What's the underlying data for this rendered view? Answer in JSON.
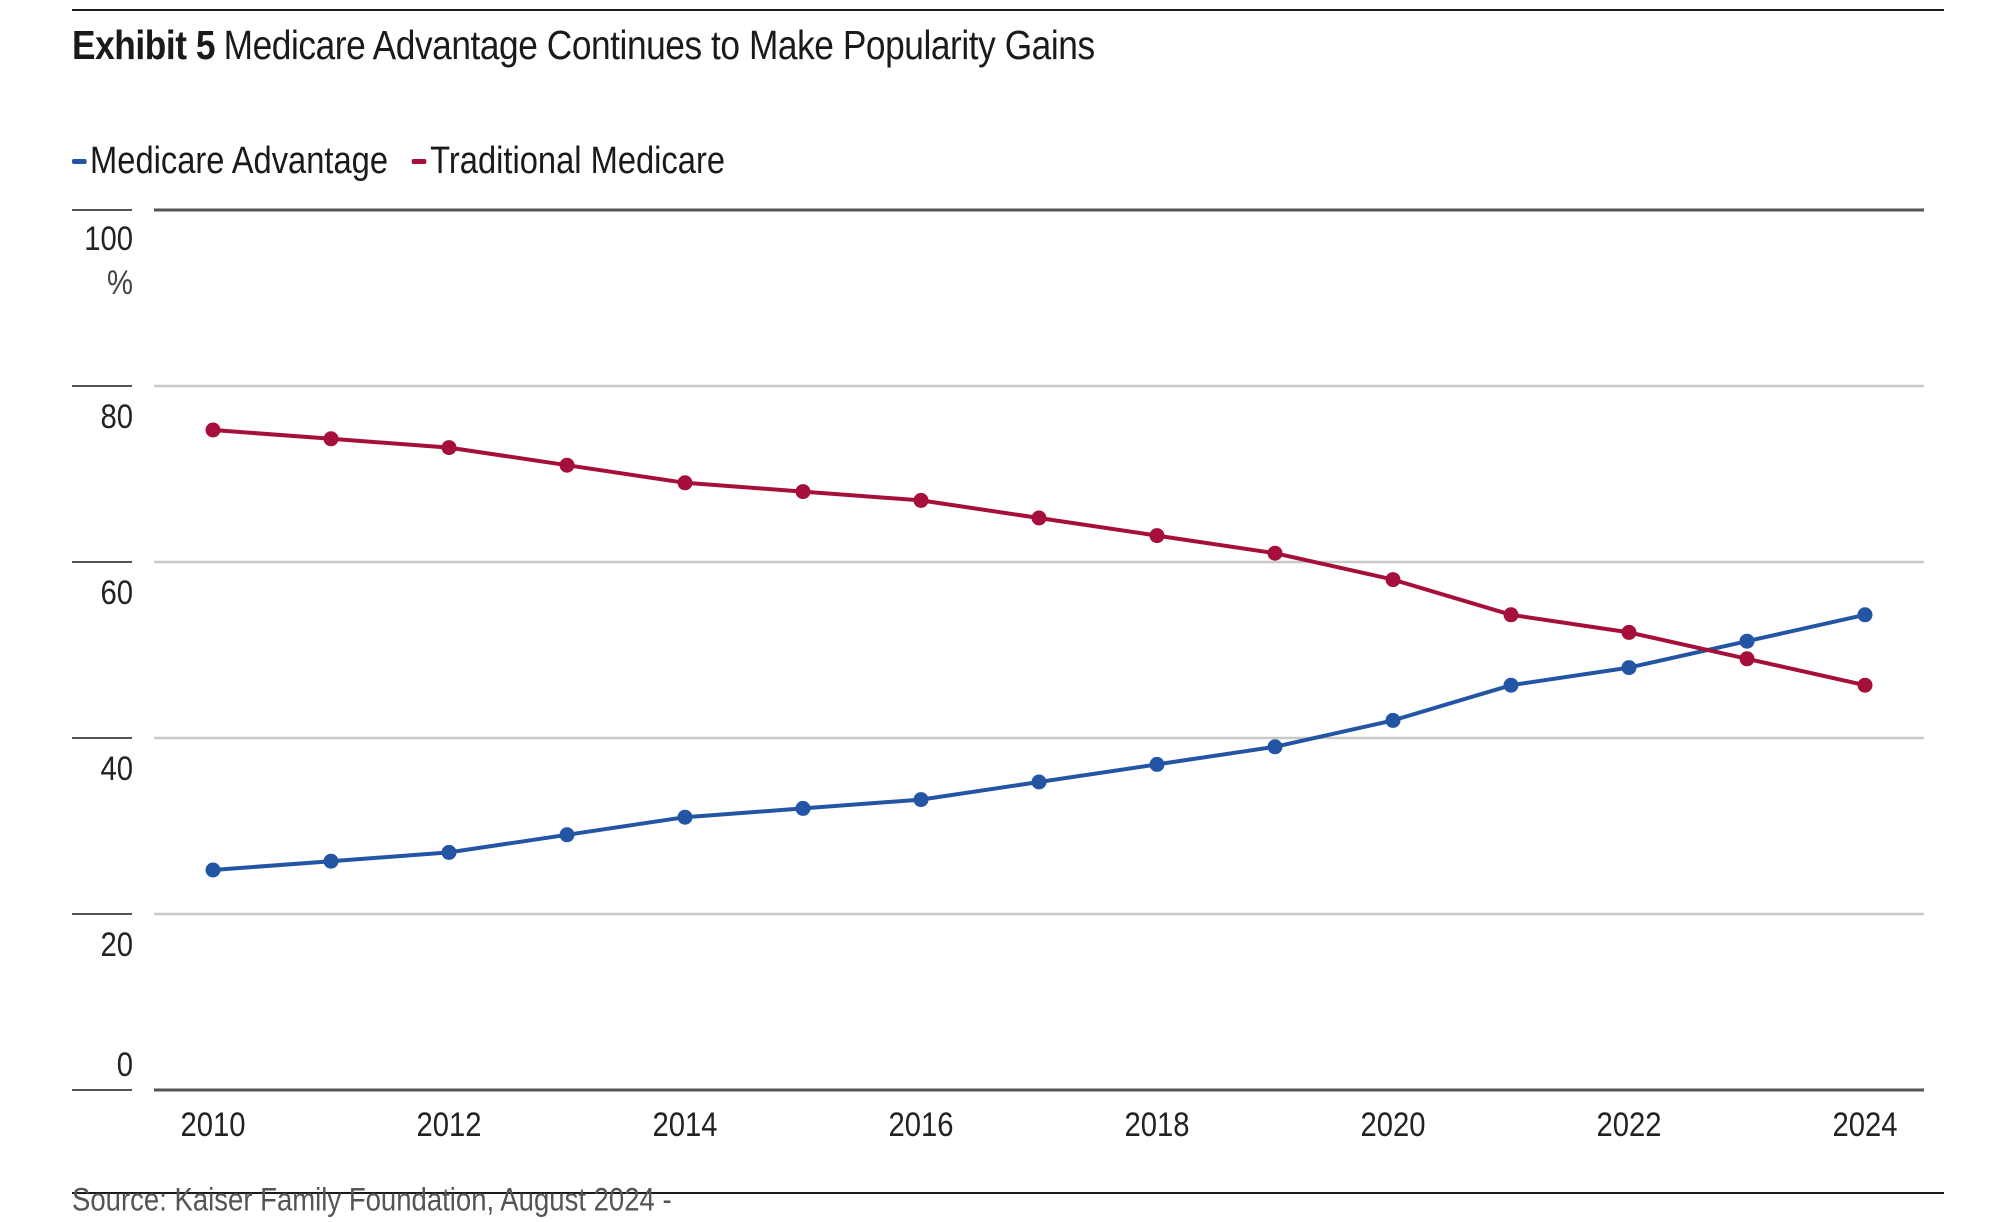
{
  "header": {
    "exhibit_label": "Exhibit 5",
    "title": "Medicare Advantage Continues to Make Popularity Gains"
  },
  "footer": {
    "source": "Source: Kaiser Family Foundation, August 2024 -"
  },
  "colors": {
    "medicare_advantage": "#2355a4",
    "traditional_medicare": "#a50f3a",
    "gridline": "#c8c8c8",
    "axis": "#555555"
  },
  "chart_data": {
    "type": "line",
    "title": "Medicare Advantage Continues to Make Popularity Gains",
    "xlabel": "",
    "ylabel": "%",
    "x": [
      2010,
      2011,
      2012,
      2013,
      2014,
      2015,
      2016,
      2017,
      2018,
      2019,
      2020,
      2021,
      2022,
      2023,
      2024
    ],
    "x_tick_labels": [
      "2010",
      "2012",
      "2014",
      "2016",
      "2018",
      "2020",
      "2022",
      "2024"
    ],
    "y_tick_labels": [
      "0",
      "20",
      "40",
      "60",
      "80",
      "100"
    ],
    "y_unit": "%",
    "ylim": [
      0,
      100
    ],
    "xlim": [
      2010,
      2024
    ],
    "grid": true,
    "legend_position": "top-left",
    "series": [
      {
        "name": "Medicare Advantage",
        "color_key": "medicare_advantage",
        "values": [
          25,
          26,
          27,
          29,
          31,
          32,
          33,
          35,
          37,
          39,
          42,
          46,
          48,
          51,
          54
        ]
      },
      {
        "name": "Traditional Medicare",
        "color_key": "traditional_medicare",
        "values": [
          75,
          74,
          73,
          71,
          69,
          68,
          67,
          65,
          63,
          61,
          58,
          54,
          52,
          49,
          46
        ]
      }
    ]
  }
}
